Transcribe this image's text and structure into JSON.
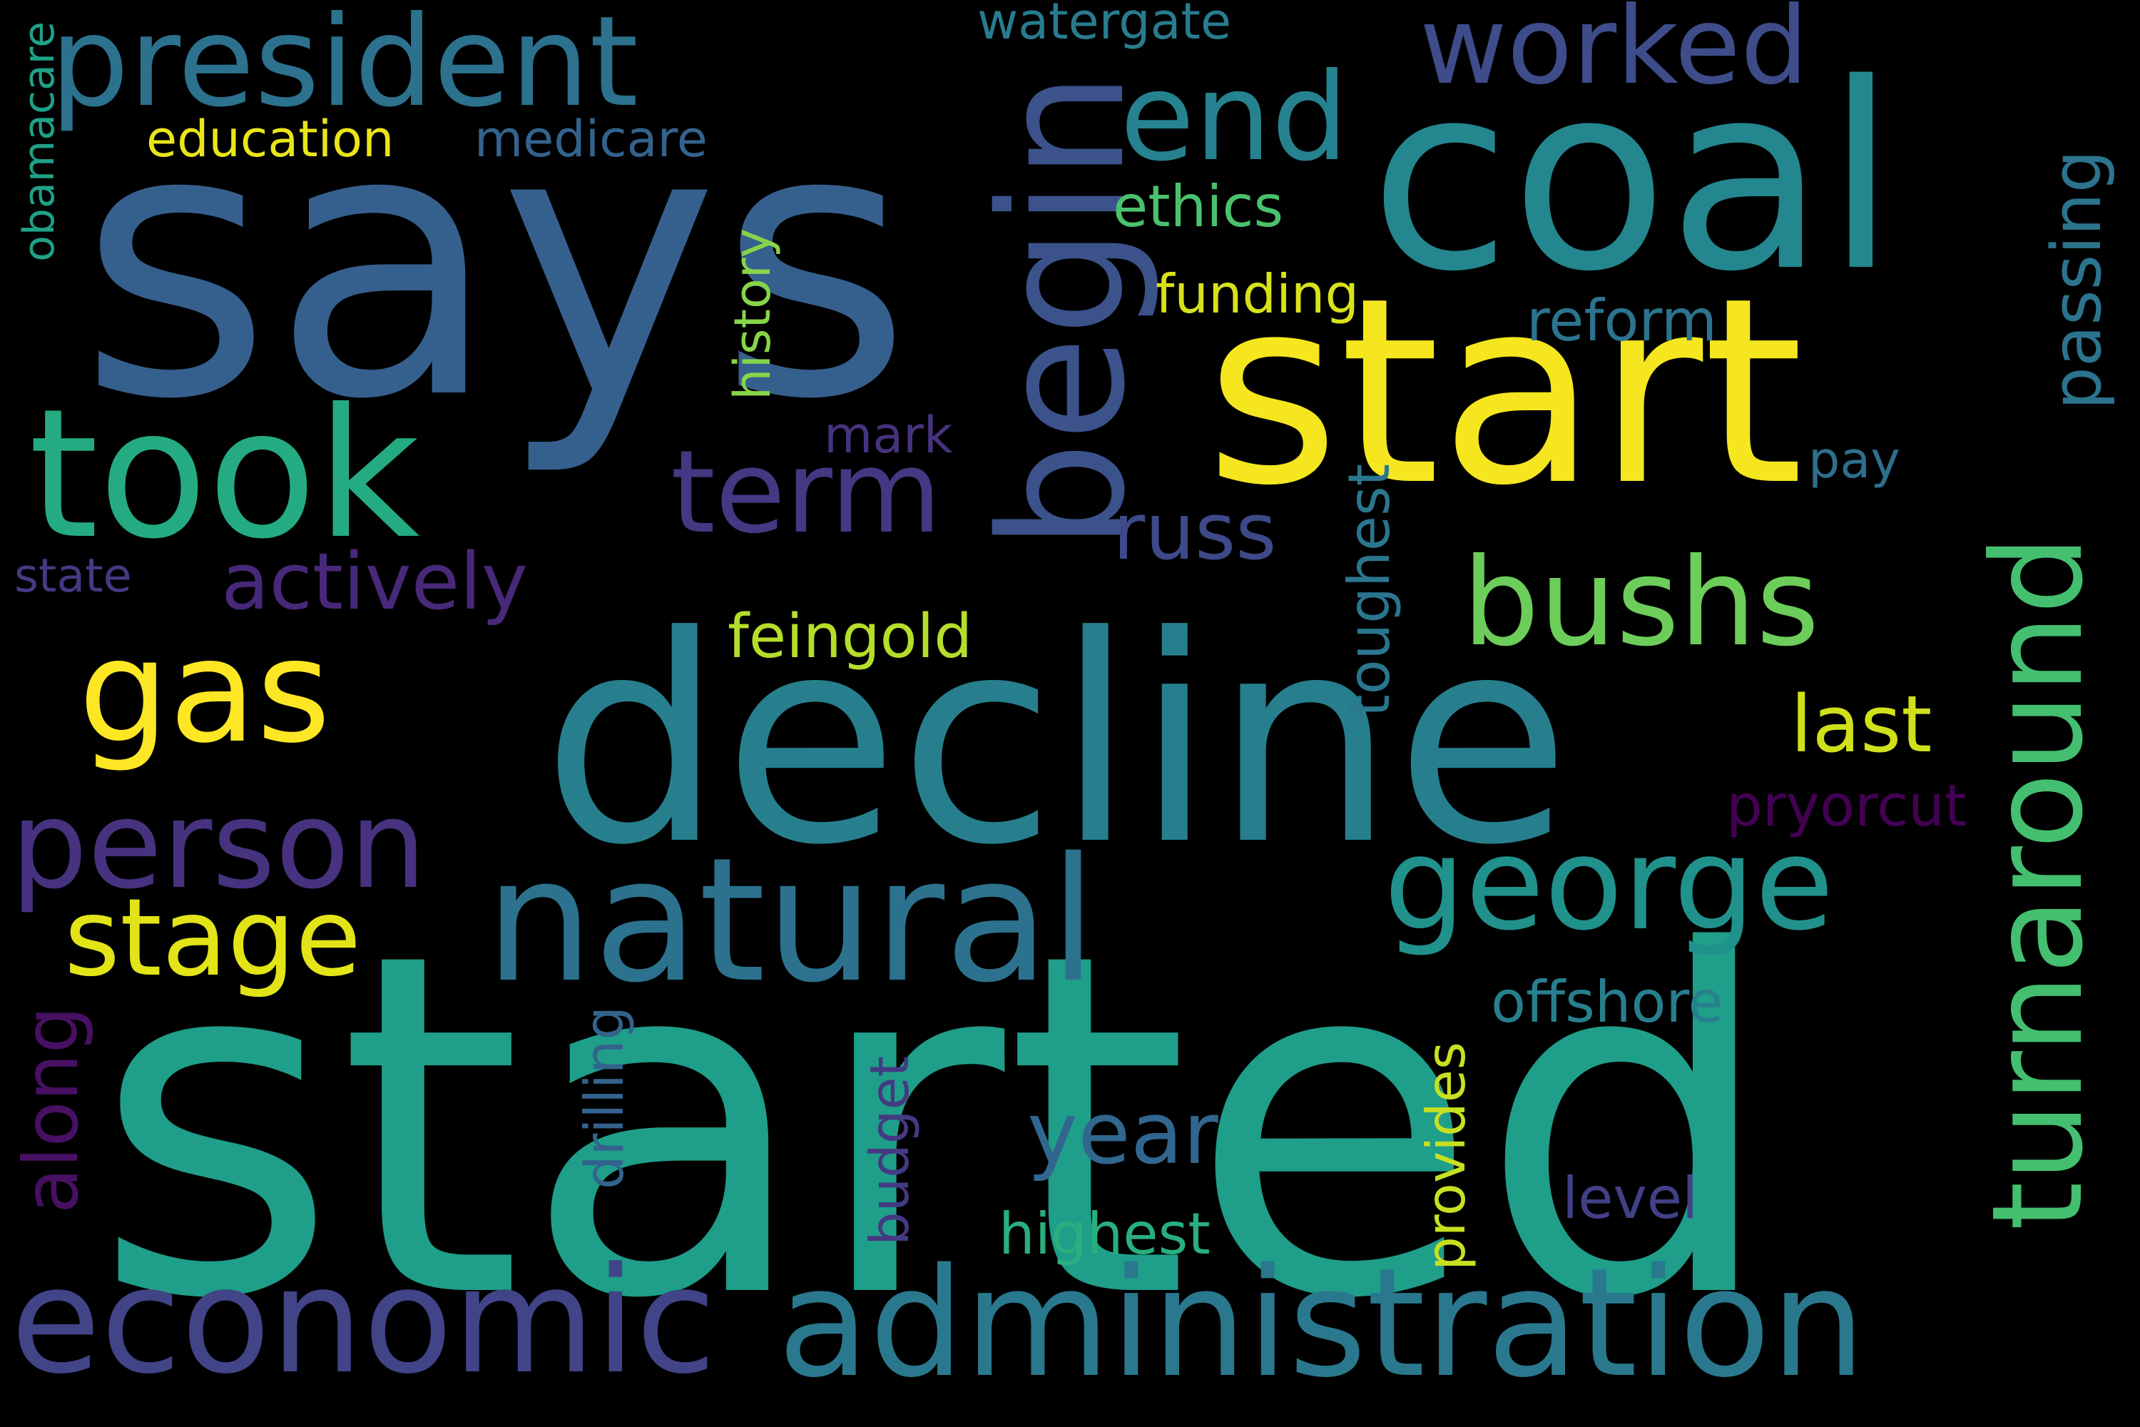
{
  "background": "#000000",
  "words": {
    "started": {
      "text": "started",
      "color": "#1f9e89"
    },
    "says": {
      "text": "says",
      "color": "#35608d"
    },
    "decline": {
      "text": "decline",
      "color": "#277f8e"
    },
    "coal": {
      "text": "coal",
      "color": "#24868e"
    },
    "start": {
      "text": "start",
      "color": "#f5e61f"
    },
    "begin": {
      "text": "begin",
      "color": "#3b528b"
    },
    "natural": {
      "text": "natural",
      "color": "#2c728e"
    },
    "took": {
      "text": "took",
      "color": "#25ab82"
    },
    "administration": {
      "text": "administration",
      "color": "#2a788e"
    },
    "economic": {
      "text": "economic",
      "color": "#414487"
    },
    "president": {
      "text": "president",
      "color": "#2c718e"
    },
    "turnaround": {
      "text": "turnaround",
      "color": "#44bf70"
    },
    "gas": {
      "text": "gas",
      "color": "#fde725"
    },
    "person": {
      "text": "person",
      "color": "#46327e"
    },
    "george": {
      "text": "george",
      "color": "#21918c"
    },
    "bushs": {
      "text": "bushs",
      "color": "#6ccd5a"
    },
    "term": {
      "text": "term",
      "color": "#453781"
    },
    "worked": {
      "text": "worked",
      "color": "#3e4c8a"
    },
    "end": {
      "text": "end",
      "color": "#26828e"
    },
    "stage": {
      "text": "stage",
      "color": "#e2e418"
    },
    "actively": {
      "text": "actively",
      "color": "#482878"
    },
    "russ": {
      "text": "russ",
      "color": "#3e4989"
    },
    "year": {
      "text": "year",
      "color": "#31668e"
    },
    "along": {
      "text": "along",
      "color": "#471063"
    },
    "passing": {
      "text": "passing",
      "color": "#2c738e"
    },
    "last": {
      "text": "last",
      "color": "#d0e11c"
    },
    "feingold": {
      "text": "feingold",
      "color": "#b5de2b"
    },
    "toughest": {
      "text": "toughest",
      "color": "#2a768e"
    },
    "offshore": {
      "text": "offshore",
      "color": "#277f8e"
    },
    "provides": {
      "text": "provides",
      "color": "#c8e020"
    },
    "budget": {
      "text": "budget",
      "color": "#443983"
    },
    "drilling": {
      "text": "drilling",
      "color": "#33638d"
    },
    "highest": {
      "text": "highest",
      "color": "#29af7f"
    },
    "level": {
      "text": "level",
      "color": "#424086"
    },
    "pryorcut": {
      "text": "pryorcut",
      "color": "#440154"
    },
    "history": {
      "text": "history",
      "color": "#86d549"
    },
    "ethics": {
      "text": "ethics",
      "color": "#4ac16d"
    },
    "funding": {
      "text": "funding",
      "color": "#d8e219"
    },
    "reform": {
      "text": "reform",
      "color": "#2c738e"
    },
    "education": {
      "text": "education",
      "color": "#eae51a"
    },
    "medicare": {
      "text": "medicare",
      "color": "#33638d"
    },
    "watergate": {
      "text": "watergate",
      "color": "#287c8e"
    },
    "obamacare": {
      "text": "obamacare",
      "color": "#1fa188"
    },
    "mark": {
      "text": "mark",
      "color": "#46337f"
    },
    "pay": {
      "text": "pay",
      "color": "#2d708e"
    },
    "state": {
      "text": "state",
      "color": "#443a83"
    }
  }
}
